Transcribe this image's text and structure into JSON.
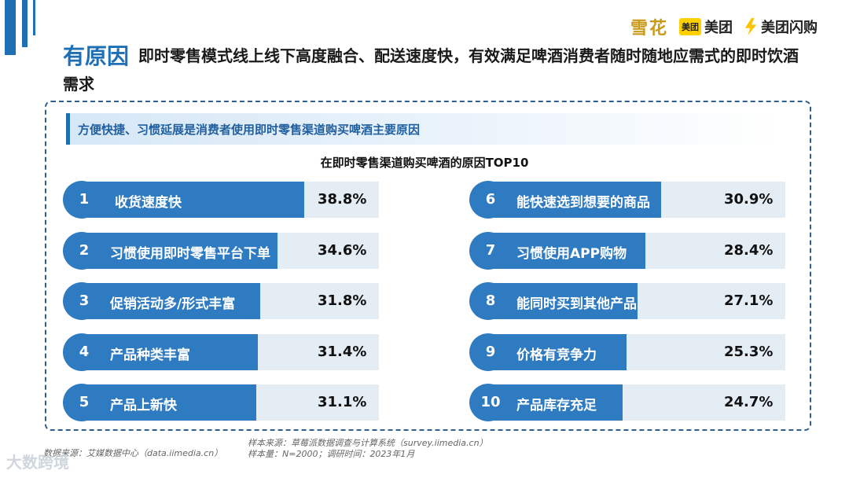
{
  "brands": {
    "snow": "雪花",
    "meituan_box": "美团",
    "meituan": "美团",
    "flash": "美团闪购"
  },
  "headline": {
    "tag": "有原因",
    "text": "即时零售模式线上线下高度融合、配送速度快，有效满足啤酒消费者随时随地应需式的即时饮酒需求"
  },
  "subtitle": "方便快捷、习惯延展是消费者使用即时零售渠道购买啤酒主要原因",
  "chart_data": {
    "type": "bar",
    "title": "在即时零售渠道购买啤酒的原因TOP10",
    "ranks": [
      "1",
      "2",
      "3",
      "4",
      "5",
      "6",
      "7",
      "8",
      "9",
      "10"
    ],
    "categories": [
      "收货速度快",
      "习惯使用即时零售平台下单",
      "促销活动多/形式丰富",
      "产品种类丰富",
      "产品上新快",
      "能快速选到想要的商品",
      "习惯使用APP购物",
      "能同时买到其他产品",
      "价格有竞争力",
      "产品库存充足"
    ],
    "values": [
      38.8,
      34.6,
      31.8,
      31.4,
      31.1,
      30.9,
      28.4,
      27.1,
      25.3,
      24.7
    ],
    "value_labels": [
      "38.8%",
      "34.6%",
      "31.8%",
      "31.4%",
      "31.1%",
      "30.9%",
      "28.4%",
      "27.1%",
      "25.3%",
      "24.7%"
    ],
    "unit": "%",
    "bar_color": "#2f7bc1"
  },
  "footer": {
    "source": "数据来源：艾媒数据中心（data.iimedia.cn）",
    "sample_source": "样本来源：草莓派数据调查与计算系统（survey.iimedia.cn）",
    "sample_size": "样本量：N=2000；调研时间：2023年1月"
  },
  "watermark": "大数跨境"
}
